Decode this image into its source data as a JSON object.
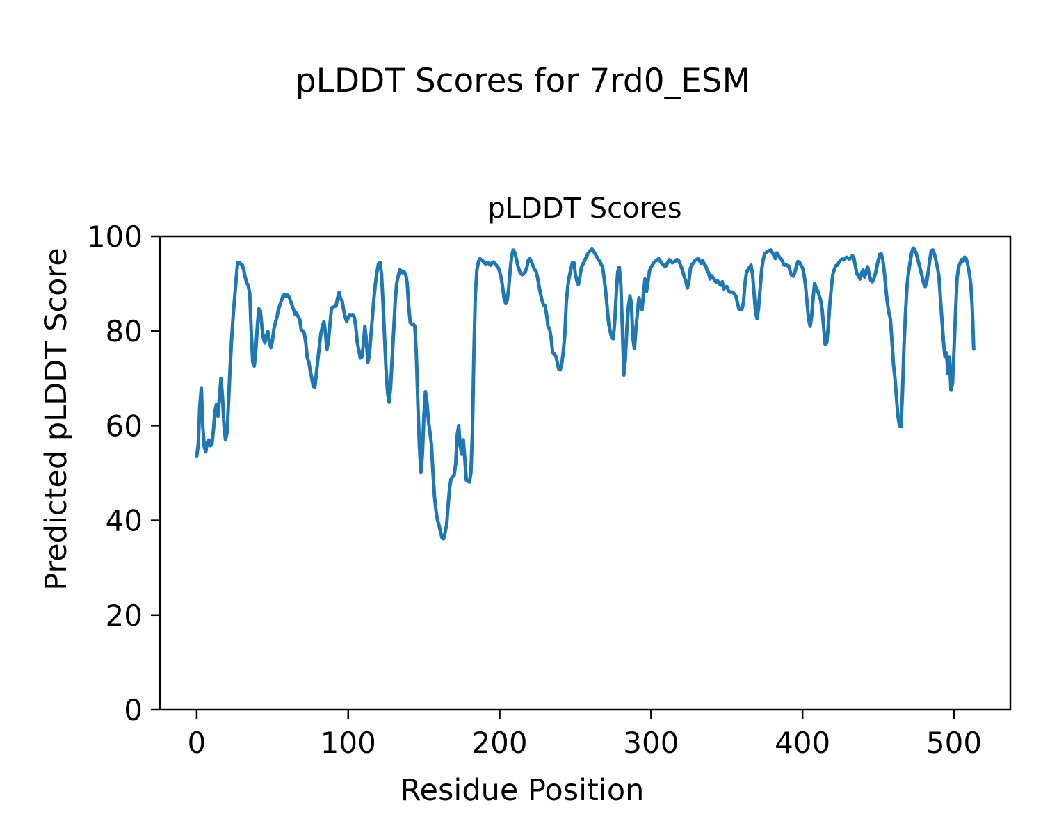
{
  "figure": {
    "suptitle": "pLDDT Scores for 7rd0_ESM",
    "axes_title": "pLDDT Scores",
    "xlabel": "Residue Position",
    "ylabel": "Predicted pLDDT Score"
  },
  "chart_data": {
    "type": "line",
    "title": "pLDDT Scores",
    "suptitle": "pLDDT Scores for 7rd0_ESM",
    "xlabel": "Residue Position",
    "ylabel": "Predicted pLDDT Score",
    "series_name": "pLDDT",
    "line_color": "#1f77b4",
    "grid": false,
    "legend": false,
    "xlim": [
      -24.3,
      537.2
    ],
    "ylim": [
      0,
      100
    ],
    "x_ticks": [
      0,
      100,
      200,
      300,
      400,
      500
    ],
    "y_ticks": [
      0,
      20,
      40,
      60,
      80,
      100
    ],
    "x_start": 0,
    "x_step": 1,
    "n_points": 514,
    "values": [
      53.5,
      56,
      64,
      68,
      60,
      55.5,
      54.5,
      56.5,
      57,
      55.8,
      56,
      59,
      63,
      64.5,
      62,
      66,
      70,
      66,
      60,
      57,
      58.5,
      65,
      72,
      78,
      83,
      87,
      91,
      94.4,
      94.5,
      94.2,
      94,
      93,
      91.4,
      90.2,
      89.6,
      88,
      80,
      73.5,
      72.6,
      76,
      81,
      84.7,
      84.3,
      81,
      78.5,
      77.5,
      79,
      79.9,
      77.5,
      76.5,
      78,
      80.5,
      81.9,
      83,
      84.7,
      85.5,
      86.5,
      87.5,
      87.7,
      87.3,
      87.6,
      87.2,
      86.3,
      85.4,
      84.5,
      83.5,
      83.8,
      83,
      82.5,
      80.3,
      80,
      79.5,
      77.5,
      74.3,
      73.5,
      71.5,
      70,
      68.3,
      68.1,
      71,
      74,
      77,
      79.5,
      81,
      82,
      79.5,
      76.1,
      78,
      81.5,
      84.9,
      85,
      85.2,
      85.3,
      87,
      88.2,
      86.8,
      86.4,
      84.5,
      83,
      82,
      82.8,
      83.5,
      83.3,
      83.5,
      83,
      81,
      77.6,
      76,
      74.3,
      74.5,
      77,
      81,
      78,
      73.4,
      75,
      79,
      83,
      87,
      90,
      92.5,
      94.1,
      94.5,
      92,
      86,
      79,
      72,
      67,
      65,
      68,
      74,
      80,
      86,
      90,
      91.5,
      92.9,
      92.7,
      92.3,
      92.5,
      92,
      90,
      85,
      81.8,
      81.4,
      81.5,
      81,
      75,
      65,
      56,
      50.1,
      54,
      62,
      67.2,
      65,
      61,
      58.5,
      56,
      50,
      45,
      42,
      40,
      39,
      37.5,
      36.3,
      36.1,
      37.5,
      39,
      43.2,
      47,
      48.8,
      49.3,
      49.6,
      52,
      58,
      60,
      55.8,
      54,
      57,
      53,
      48.5,
      48.3,
      48.1,
      50,
      58,
      75,
      88,
      93,
      94.6,
      95.3,
      95,
      94.8,
      94.4,
      94.1,
      94.5,
      94.2,
      93.9,
      94.4,
      94.6,
      94.2,
      93.8,
      93.4,
      92.6,
      91.3,
      89.3,
      86.8,
      85.8,
      86.5,
      89,
      93,
      96,
      97.1,
      96.6,
      95.3,
      93.8,
      92.8,
      92.1,
      91.9,
      92.2,
      92.6,
      93.5,
      95,
      95.3,
      94.6,
      93.8,
      93,
      92.7,
      91.3,
      89.5,
      87.8,
      86.5,
      85.5,
      85.3,
      83.5,
      80.9,
      80.5,
      78.5,
      75.5,
      75.2,
      74.8,
      73.5,
      72,
      71.8,
      73,
      75.5,
      79,
      86,
      89.5,
      91.5,
      93,
      94.4,
      94.5,
      92,
      90.6,
      89.8,
      91.5,
      93.5,
      94.1,
      94.8,
      95.5,
      96.2,
      96.7,
      97,
      97.3,
      96.9,
      96.3,
      95.8,
      95.2,
      94.8,
      94.1,
      93.5,
      91.2,
      88.5,
      85,
      81.5,
      80,
      78.6,
      78.4,
      82,
      88,
      92.5,
      93.5,
      90,
      81,
      70.7,
      74,
      80.5,
      85,
      87.4,
      86,
      78.5,
      76.3,
      80.5,
      84,
      87,
      85.5,
      84.5,
      88,
      91,
      88.4,
      90.5,
      92.8,
      93.5,
      94,
      94.5,
      94.8,
      95,
      95.3,
      94.8,
      94.3,
      94,
      93.6,
      93.8,
      94.5,
      95.1,
      94.8,
      94.4,
      94.6,
      94.8,
      95.1,
      95,
      94.3,
      93.5,
      92.5,
      91.4,
      90.4,
      89.1,
      90.5,
      93.3,
      94,
      94.4,
      94.9,
      95.1,
      95.3,
      94.8,
      94.3,
      94.9,
      94.2,
      93.8,
      92.8,
      92.3,
      91,
      91.7,
      91.2,
      90.7,
      90.3,
      90.6,
      90,
      89.7,
      90.4,
      88.9,
      89.2,
      89.4,
      88.6,
      88.2,
      88.3,
      88.2,
      87.8,
      87.4,
      86,
      84.7,
      84.5,
      84.6,
      86,
      90,
      92.4,
      93,
      93.5,
      93.9,
      92,
      88,
      84,
      82.6,
      85,
      89,
      93,
      95,
      96.3,
      96.6,
      96.8,
      97,
      97.1,
      96.6,
      96,
      95.3,
      96.5,
      96,
      95.5,
      95.2,
      94.5,
      93.9,
      94,
      93.8,
      93.7,
      92.4,
      91.7,
      91.6,
      92.5,
      93.8,
      94.7,
      94.5,
      93.9,
      93.3,
      92,
      89.5,
      86,
      82.5,
      81,
      83,
      87,
      90.1,
      89,
      88.5,
      87.5,
      86.5,
      84.4,
      80.5,
      77.2,
      77.5,
      81,
      85.7,
      89,
      92,
      93,
      93.8,
      93.9,
      94.5,
      94.9,
      95.2,
      95,
      95.3,
      95.6,
      95.4,
      95.2,
      95.6,
      95.9,
      95.3,
      93.5,
      92,
      91.7,
      91,
      92.3,
      92.9,
      91.4,
      92.5,
      93.6,
      92,
      90.7,
      90.4,
      91,
      92,
      93.5,
      95,
      96.2,
      96.3,
      95,
      92.5,
      89,
      86,
      84,
      82.5,
      78,
      73,
      70.2,
      66,
      62,
      60,
      59.8,
      67,
      77,
      84,
      89.7,
      92.5,
      94.5,
      96.5,
      97.5,
      97.2,
      96.5,
      95.3,
      94,
      92.7,
      91.5,
      90,
      89.4,
      90.5,
      92.5,
      95,
      97,
      97.1,
      96.3,
      95,
      93.5,
      91.7,
      87,
      82.4,
      78,
      74.6,
      75.4,
      71,
      74.5,
      67.5,
      69,
      76,
      84,
      91,
      93.5,
      94.3,
      95.1,
      94.7,
      95.6,
      95.3,
      94.1,
      92.4,
      90.2,
      85.3,
      76.2
    ]
  }
}
